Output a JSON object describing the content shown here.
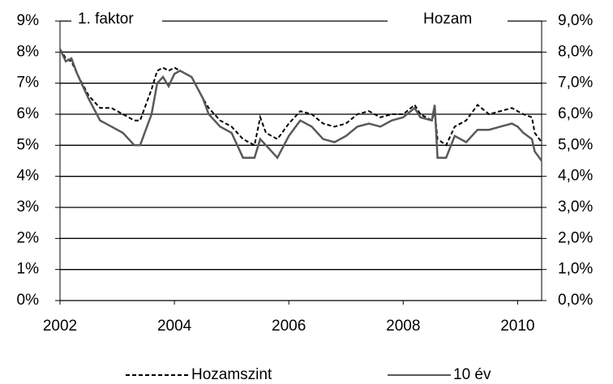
{
  "chart_data": {
    "type": "line",
    "annotations": [
      "1. faktor",
      "Hozam"
    ],
    "x": [
      2002.0,
      2002.1,
      2002.2,
      2002.3,
      2002.5,
      2002.7,
      2002.9,
      2003.1,
      2003.3,
      2003.4,
      2003.5,
      2003.6,
      2003.7,
      2003.8,
      2003.9,
      2004.0,
      2004.1,
      2004.3,
      2004.5,
      2004.6,
      2004.8,
      2005.0,
      2005.2,
      2005.4,
      2005.5,
      2005.6,
      2005.8,
      2006.0,
      2006.2,
      2006.4,
      2006.6,
      2006.8,
      2007.0,
      2007.2,
      2007.4,
      2007.6,
      2007.8,
      2008.0,
      2008.2,
      2008.3,
      2008.5,
      2008.55,
      2008.6,
      2008.75,
      2008.9,
      2009.1,
      2009.3,
      2009.5,
      2009.7,
      2009.9,
      2010.0,
      2010.1,
      2010.25,
      2010.3,
      2010.42
    ],
    "series": [
      {
        "name": "Hozamszint",
        "color": "#000000",
        "dash": true,
        "values": [
          8.1,
          7.8,
          7.7,
          7.3,
          6.6,
          6.2,
          6.2,
          6.0,
          5.8,
          5.8,
          6.3,
          6.8,
          7.4,
          7.5,
          7.4,
          7.5,
          7.4,
          7.2,
          6.5,
          6.2,
          5.8,
          5.6,
          5.2,
          5.0,
          5.9,
          5.4,
          5.2,
          5.7,
          6.1,
          6.0,
          5.7,
          5.6,
          5.7,
          6.0,
          6.1,
          5.9,
          6.0,
          6.0,
          6.3,
          6.0,
          5.8,
          6.1,
          5.2,
          5.0,
          5.6,
          5.8,
          6.3,
          6.0,
          6.1,
          6.2,
          6.1,
          6.0,
          5.9,
          5.4,
          5.1
        ]
      },
      {
        "name": "10 év",
        "color": "#595959",
        "dash": false,
        "values": [
          8.1,
          7.7,
          7.8,
          7.3,
          6.5,
          5.8,
          5.6,
          5.4,
          5.0,
          5.0,
          5.5,
          6.0,
          7.0,
          7.2,
          6.9,
          7.3,
          7.4,
          7.2,
          6.5,
          6.0,
          5.6,
          5.4,
          4.6,
          4.6,
          5.2,
          5.0,
          4.6,
          5.3,
          5.8,
          5.6,
          5.2,
          5.1,
          5.3,
          5.6,
          5.7,
          5.6,
          5.8,
          5.9,
          6.2,
          5.9,
          5.8,
          6.3,
          4.6,
          4.6,
          5.3,
          5.1,
          5.5,
          5.5,
          5.6,
          5.7,
          5.6,
          5.4,
          5.2,
          4.8,
          4.5
        ]
      }
    ],
    "xlim": [
      2002,
      2010.42
    ],
    "xticks": [
      2002,
      2004,
      2006,
      2008,
      2010
    ],
    "ylim": [
      0,
      9
    ],
    "yticks": [
      {
        "value": 0,
        "label": "0%"
      },
      {
        "value": 1,
        "label": "1%"
      },
      {
        "value": 2,
        "label": "2%"
      },
      {
        "value": 3,
        "label": "3%"
      },
      {
        "value": 4,
        "label": "4%"
      },
      {
        "value": 5,
        "label": "5%"
      },
      {
        "value": 6,
        "label": "6%"
      },
      {
        "value": 7,
        "label": "7%"
      },
      {
        "value": 8,
        "label": "8%"
      },
      {
        "value": 9,
        "label": "9%"
      }
    ],
    "y2lim": [
      0,
      9
    ],
    "y2ticks": [
      {
        "value": 0,
        "label": "0,0%"
      },
      {
        "value": 1,
        "label": "1,0%"
      },
      {
        "value": 2,
        "label": "2,0%"
      },
      {
        "value": 3,
        "label": "3,0%"
      },
      {
        "value": 4,
        "label": "4,0%"
      },
      {
        "value": 5,
        "label": "5,0%"
      },
      {
        "value": 6,
        "label": "6,0%"
      },
      {
        "value": 7,
        "label": "7,0%"
      },
      {
        "value": 8,
        "label": "8,0%"
      },
      {
        "value": 9,
        "label": "9,0%"
      }
    ],
    "grid": true,
    "legend": "bottom"
  }
}
